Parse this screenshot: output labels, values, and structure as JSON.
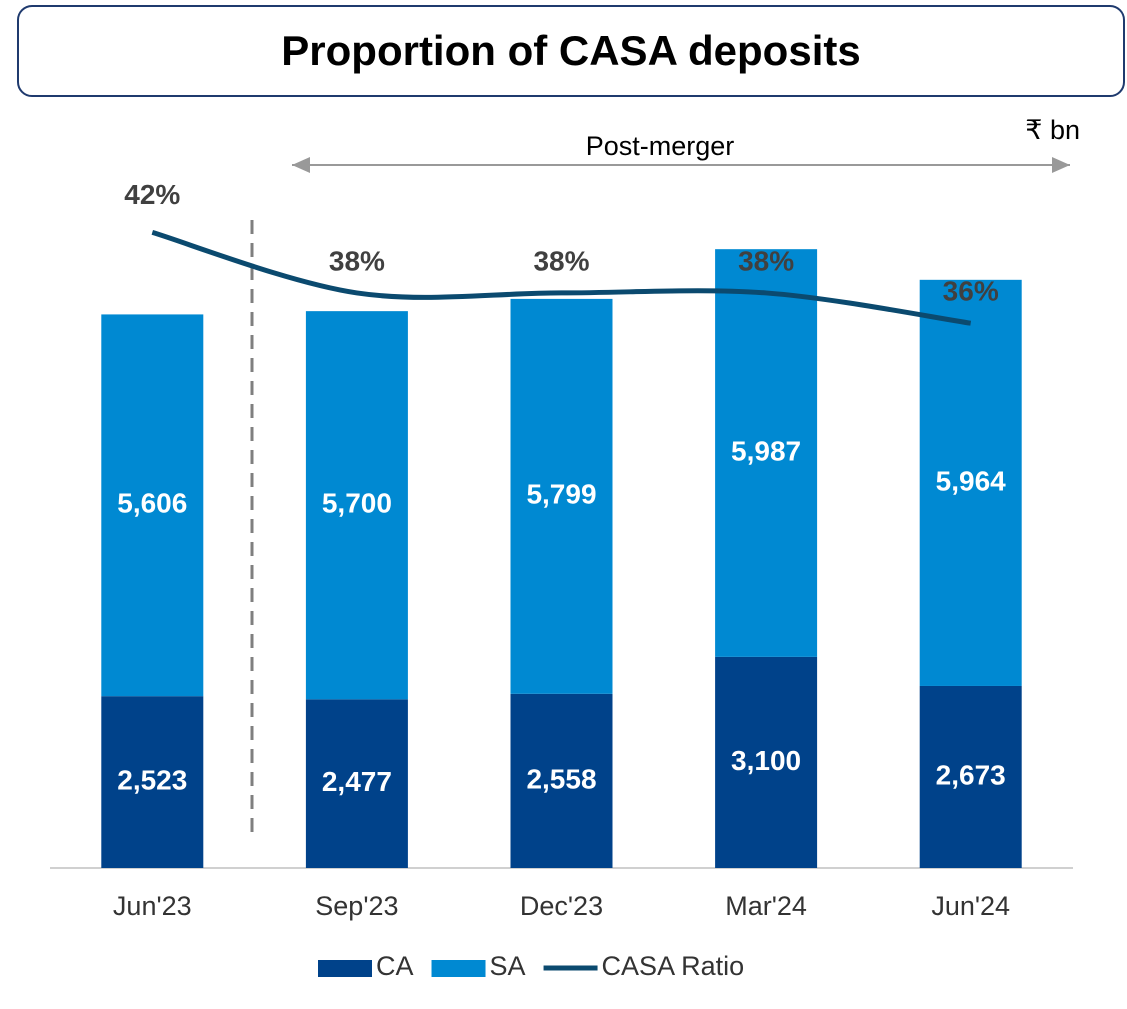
{
  "chart_data": {
    "type": "bar",
    "stacked": true,
    "title": "Proportion of CASA deposits",
    "annotations": {
      "period": "Post-merger",
      "unit": "₹ bn"
    },
    "categories": [
      "Jun'23",
      "Sep'23",
      "Dec'23",
      "Mar'24",
      "Jun'24"
    ],
    "series": [
      {
        "name": "CA",
        "color": "#00428a",
        "values": [
          2523,
          2477,
          2558,
          3100,
          2673
        ],
        "value_labels": [
          "2,523",
          "2,477",
          "2,558",
          "3,100",
          "2,673"
        ]
      },
      {
        "name": "SA",
        "color": "#0089d2",
        "values": [
          5606,
          5700,
          5799,
          5987,
          5964
        ],
        "value_labels": [
          "5,606",
          "5,700",
          "5,799",
          "5,987",
          "5,964"
        ]
      },
      {
        "name": "CASA Ratio",
        "type": "line",
        "axis": "y2",
        "color": "#0b4a6f",
        "values": [
          42,
          38,
          38,
          38,
          36
        ],
        "value_labels": [
          "42%",
          "38%",
          "38%",
          "38%",
          "36%"
        ]
      }
    ],
    "ylim": [
      0,
      10000
    ],
    "y2lim": [
      0,
      45
    ]
  }
}
